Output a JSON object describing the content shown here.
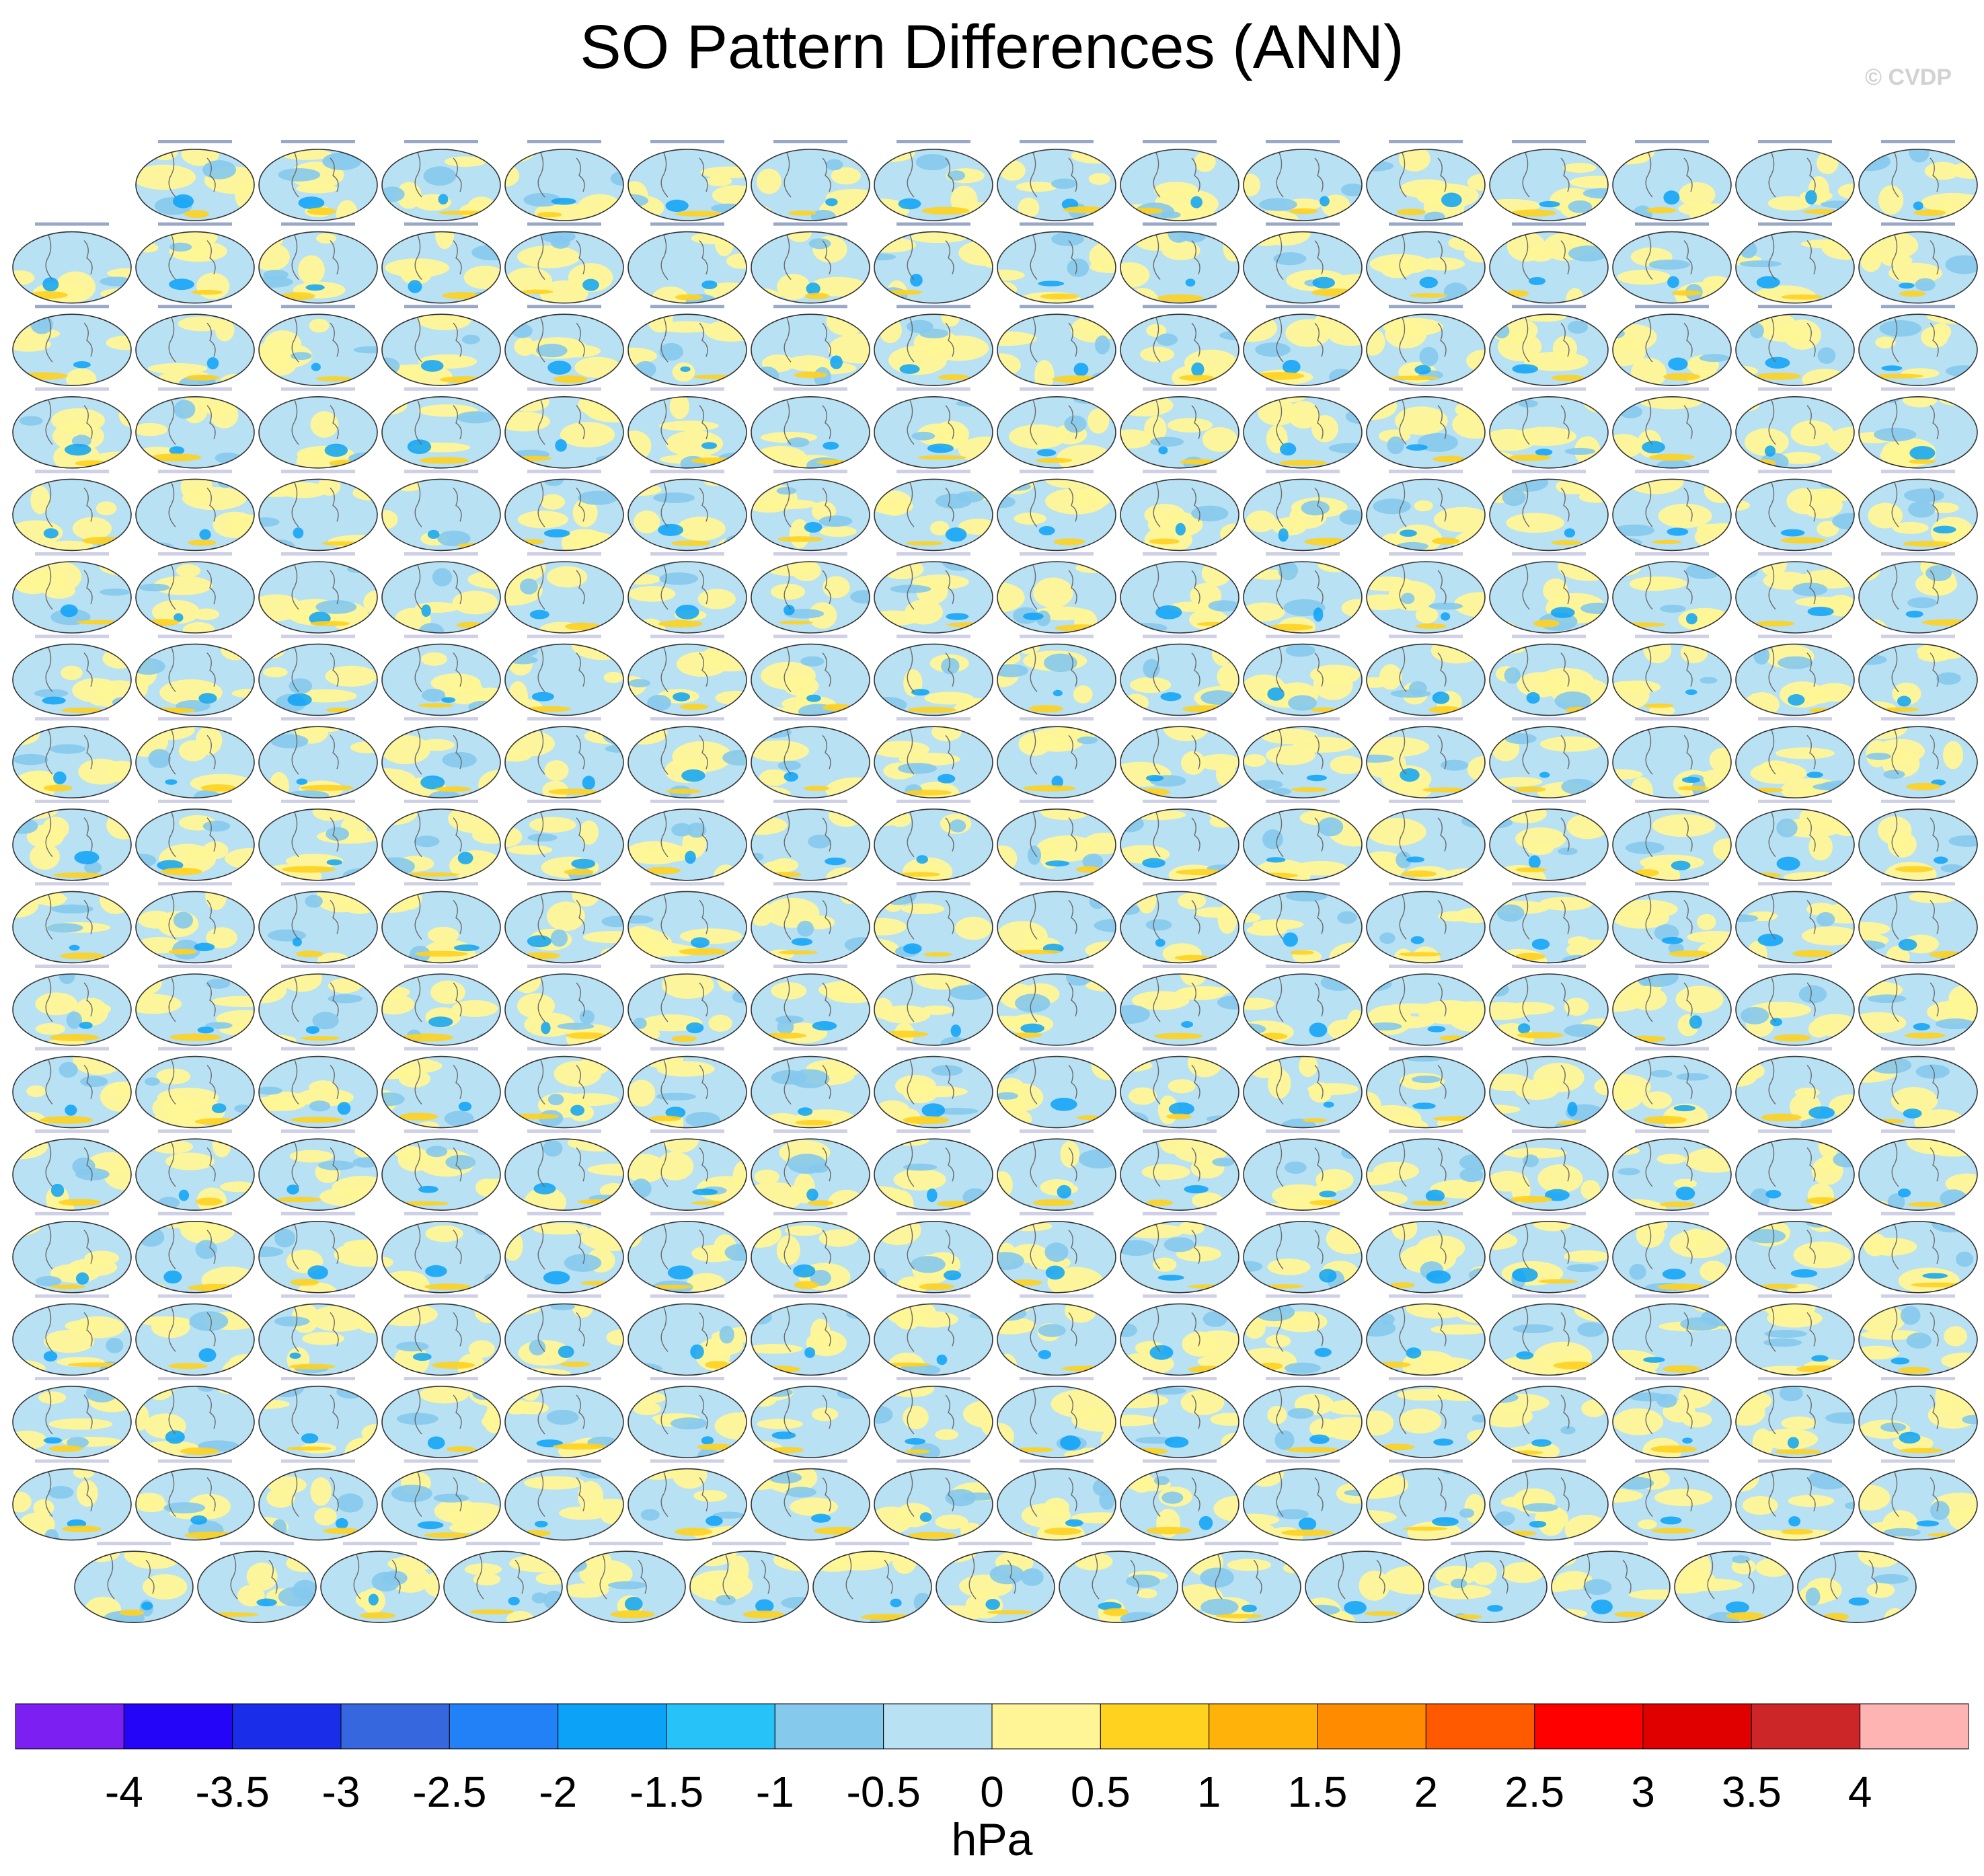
{
  "title": "SO Pattern Differences (ANN)",
  "watermark": "© CVDP",
  "chart_data": {
    "type": "heatmap",
    "title": "SO Pattern Differences (ANN)",
    "panel_grid": {
      "rows": [
        15,
        16,
        16,
        16,
        16,
        16,
        16,
        16,
        16,
        16,
        16,
        16,
        16,
        16,
        16,
        16,
        16,
        15
      ],
      "total_panels": 286,
      "map_projection": "elliptical global map"
    },
    "colorbar": {
      "label": "hPa",
      "ticks": [
        "-4",
        "-3.5",
        "-3",
        "-2.5",
        "-2",
        "-1.5",
        "-1",
        "-0.5",
        "0",
        "0.5",
        "1",
        "1.5",
        "2",
        "2.5",
        "3",
        "3.5",
        "4"
      ],
      "range": [
        -4,
        4
      ],
      "interval": 0.5,
      "colors": [
        "#7c1ff2",
        "#2405f7",
        "#1a2ee9",
        "#3767de",
        "#2281f7",
        "#0ca2f7",
        "#27c2f8",
        "#85c9ed",
        "#b8e1f3",
        "#fff596",
        "#ffd21f",
        "#ffb30a",
        "#ff8c00",
        "#ff5a00",
        "#ff0000",
        "#e00000",
        "#cd2628",
        "#ffb4b4"
      ]
    }
  }
}
